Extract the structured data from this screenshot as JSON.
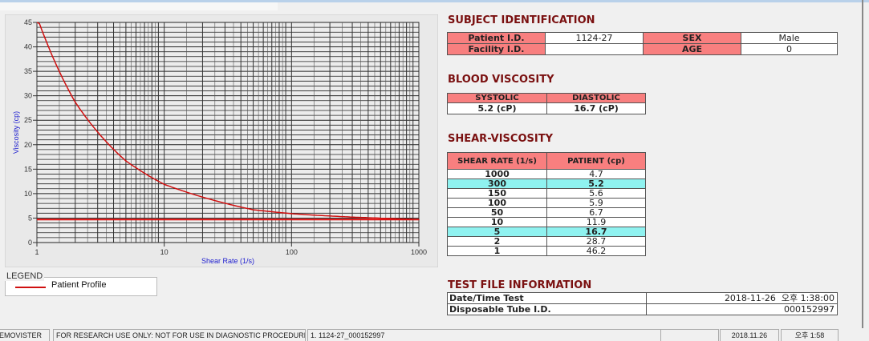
{
  "chart_data": {
    "type": "line",
    "xlabel": "Shear Rate (1/s)",
    "ylabel": "Viscosity (cp)",
    "x_scale": "log",
    "xlim": [
      1,
      1000
    ],
    "ylim": [
      0,
      45
    ],
    "x_ticks": [
      "1",
      "10",
      "100",
      "1000"
    ],
    "y_ticks": [
      "0",
      "5",
      "10",
      "15",
      "20",
      "25",
      "30",
      "35",
      "40",
      "45"
    ],
    "grid": true,
    "series": [
      {
        "name": "Patient Profile",
        "color": "#d01010",
        "x": [
          1,
          2,
          5,
          10,
          50,
          100,
          150,
          300,
          1000
        ],
        "y": [
          46.2,
          28.7,
          16.7,
          11.9,
          6.7,
          5.9,
          5.6,
          5.2,
          4.7
        ]
      }
    ],
    "reference_line": 4.7
  },
  "legend": {
    "title": "LEGEND",
    "items": [
      {
        "label": "Patient Profile",
        "color": "#d01010"
      }
    ]
  },
  "subject": {
    "title": "SUBJECT IDENTIFICATION",
    "patient_id_label": "Patient I.D.",
    "patient_id": "1124-27",
    "sex_label": "SEX",
    "sex": "Male",
    "facility_label": "Facility I.D.",
    "facility": "",
    "age_label": "AGE",
    "age": "0"
  },
  "blood": {
    "title": "BLOOD VISCOSITY",
    "systolic_label": "SYSTOLIC",
    "diastolic_label": "DIASTOLIC",
    "systolic": "5.2 (cP)",
    "diastolic": "16.7 (cP)"
  },
  "shear": {
    "title": "SHEAR-VISCOSITY",
    "col1": "SHEAR RATE (1/s)",
    "col2": "PATIENT (cp)",
    "rows": [
      {
        "rate": "1000",
        "v": "4.7"
      },
      {
        "rate": "300",
        "v": "5.2",
        "hl": true
      },
      {
        "rate": "150",
        "v": "5.6"
      },
      {
        "rate": "100",
        "v": "5.9"
      },
      {
        "rate": "50",
        "v": "6.7"
      },
      {
        "rate": "10",
        "v": "11.9"
      },
      {
        "rate": "5",
        "v": "16.7",
        "hl": true
      },
      {
        "rate": "2",
        "v": "28.7"
      },
      {
        "rate": "1",
        "v": "46.2"
      }
    ]
  },
  "testfile": {
    "title": "TEST FILE INFORMATION",
    "date_label": "Date/Time Test",
    "date": "2018-11-26  오후 1:38:00",
    "tube_label": "Disposable Tube I.D.",
    "tube": "000152997"
  },
  "status": {
    "app": "EMOVISTER",
    "notice": "FOR RESEARCH USE ONLY: NOT FOR USE IN DIAGNOSTIC PROCEDURES",
    "file": "1. 1124-27_000152997",
    "blank": "",
    "date": "2018.11.26",
    "time": "오후 1:58"
  },
  "colors": {
    "header": "#f87f7f",
    "highlight": "#8ff2f0",
    "section_title": "#7a1010",
    "curve": "#d01010",
    "axis_label": "#2020d0"
  }
}
